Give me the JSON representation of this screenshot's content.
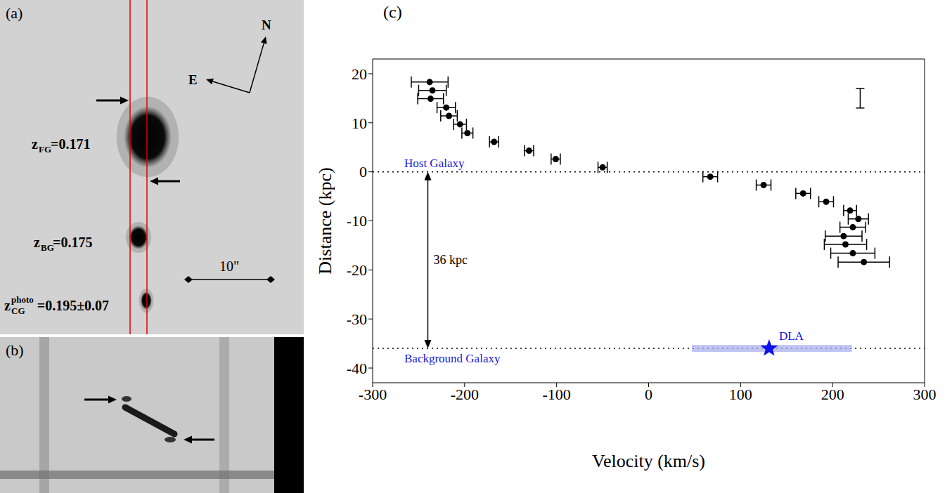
{
  "panels": {
    "a": {
      "letter": "(a)",
      "galaxies": [
        {
          "symbol": "z",
          "subscript": "FG",
          "text": "=0.171"
        },
        {
          "symbol": "z",
          "subscript": "BG",
          "text": "=0.175"
        },
        {
          "symbol": "z",
          "subscript": "CG",
          "superscript": "photo",
          "text": "=0.195±0.07"
        }
      ],
      "compass": {
        "north": "N",
        "east": "E"
      },
      "scale_bar": "10\""
    },
    "b": {
      "letter": "(b)"
    }
  },
  "chart_data": {
    "type": "scatter",
    "letter": "(c)",
    "x_label": "Velocity (km/s)",
    "y_label": "Distance (kpc)",
    "xlim": [
      -300,
      300
    ],
    "xticks": [
      -300,
      -200,
      -100,
      0,
      100,
      200,
      300
    ],
    "ylim": [
      -43,
      23
    ],
    "yticks": [
      -40,
      -30,
      -20,
      -10,
      0,
      10,
      20
    ],
    "color": "#000000",
    "marker": "circle",
    "x": [
      -238,
      -235,
      -237,
      -220,
      -217,
      -205,
      -197,
      -168,
      -130,
      -101,
      -50,
      67,
      125,
      168,
      193,
      219,
      228,
      222,
      212,
      214,
      222,
      234
    ],
    "values": [
      18.3,
      16.6,
      14.9,
      13.1,
      11.4,
      9.7,
      7.9,
      6.1,
      4.3,
      2.6,
      0.9,
      -1.0,
      -2.7,
      -4.4,
      -6.1,
      -7.9,
      -9.6,
      -11.3,
      -13.1,
      -14.8,
      -16.6,
      -18.4
    ],
    "x_error": [
      20,
      15,
      14,
      10,
      9,
      7,
      6,
      5,
      5,
      5,
      5,
      8,
      8,
      8,
      8,
      7,
      11,
      14,
      20,
      23,
      24,
      28
    ],
    "reference_lines": [
      {
        "y": 0,
        "label": "Host Galaxy",
        "line_style": "dotted"
      },
      {
        "y": -36,
        "label": "Background Galaxy",
        "line_style": "dotted"
      }
    ],
    "separation": {
      "text": "36 kpc",
      "x": -240,
      "y_from": 0,
      "y_to": -36
    },
    "dla": {
      "label": "DLA",
      "x": 131,
      "y": -36,
      "x_range": [
        47,
        221
      ],
      "color": "#1010ee",
      "marker": "star"
    },
    "distance_error": {
      "x": 230,
      "y": 15,
      "y_error": 2
    }
  }
}
